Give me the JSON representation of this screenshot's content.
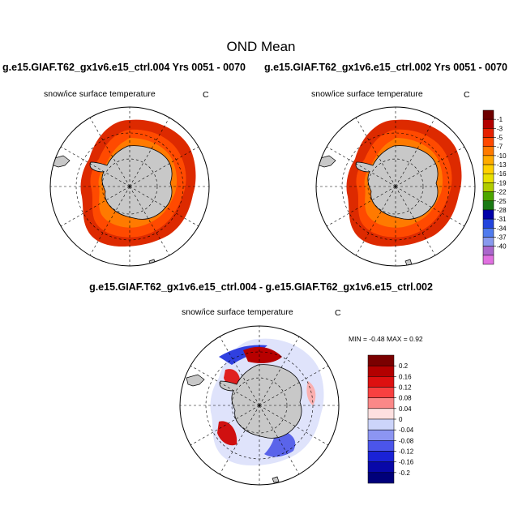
{
  "title": "OND Mean",
  "panels": {
    "top_left": {
      "case_title": "g.e15.GIAF.T62_gx1v6.e15_ctrl.004  Yrs 0051 - 0070",
      "variable": "snow/ice surface temperature",
      "units": "C"
    },
    "top_right": {
      "case_title": "g.e15.GIAF.T62_gx1v6.e15_ctrl.002  Yrs 0051 - 0070",
      "variable": "snow/ice surface temperature",
      "units": "C"
    },
    "difference": {
      "case_title": "g.e15.GIAF.T62_gx1v6.e15_ctrl.004 - g.e15.GIAF.T62_gx1v6.e15_ctrl.002",
      "variable": "snow/ice surface temperature",
      "units": "C",
      "min_max": "MIN =  -0.48 MAX =   0.92"
    }
  },
  "chart_data": [
    {
      "type": "heatmap",
      "projection": "south-polar stereographic",
      "title": "g.e15.GIAF.T62_gx1v6.e15_ctrl.004  Yrs 0051 - 0070",
      "field": "snow/ice surface temperature",
      "units": "C",
      "colorbar": {
        "levels": [
          "-1",
          "-3",
          "-5",
          "-7",
          "-10",
          "-13",
          "-16",
          "-19",
          "-22",
          "-25",
          "-28",
          "-31",
          "-34",
          "-37",
          "-40"
        ],
        "colors": [
          "#6e0000",
          "#b30000",
          "#e62000",
          "#ff4800",
          "#ff7a00",
          "#ffab00",
          "#ffd000",
          "#e8e000",
          "#b0cc00",
          "#4ca600",
          "#1a7a14",
          "#0000a8",
          "#2244dd",
          "#4f7aee",
          "#8899ee",
          "#aa66cc",
          "#e070e0"
        ]
      }
    },
    {
      "type": "heatmap",
      "projection": "south-polar stereographic",
      "title": "g.e15.GIAF.T62_gx1v6.e15_ctrl.002  Yrs 0051 - 0070",
      "field": "snow/ice surface temperature",
      "units": "C"
    },
    {
      "type": "heatmap",
      "projection": "south-polar stereographic",
      "title": "g.e15.GIAF.T62_gx1v6.e15_ctrl.004 - g.e15.GIAF.T62_gx1v6.e15_ctrl.002",
      "field": "snow/ice surface temperature",
      "units": "C",
      "min": -0.48,
      "max": 0.92,
      "colorbar": {
        "levels": [
          "0.2",
          "0.16",
          "0.12",
          "0.08",
          "0.04",
          "0",
          "-0.04",
          "-0.08",
          "-0.12",
          "-0.16",
          "-0.2"
        ],
        "colors": [
          "#7a0000",
          "#b30000",
          "#dd1010",
          "#f84040",
          "#fb8888",
          "#fde0e0",
          "#ccd4fa",
          "#8c95f2",
          "#4b55ea",
          "#1a22d6",
          "#0808a8",
          "#00007a"
        ]
      }
    }
  ]
}
